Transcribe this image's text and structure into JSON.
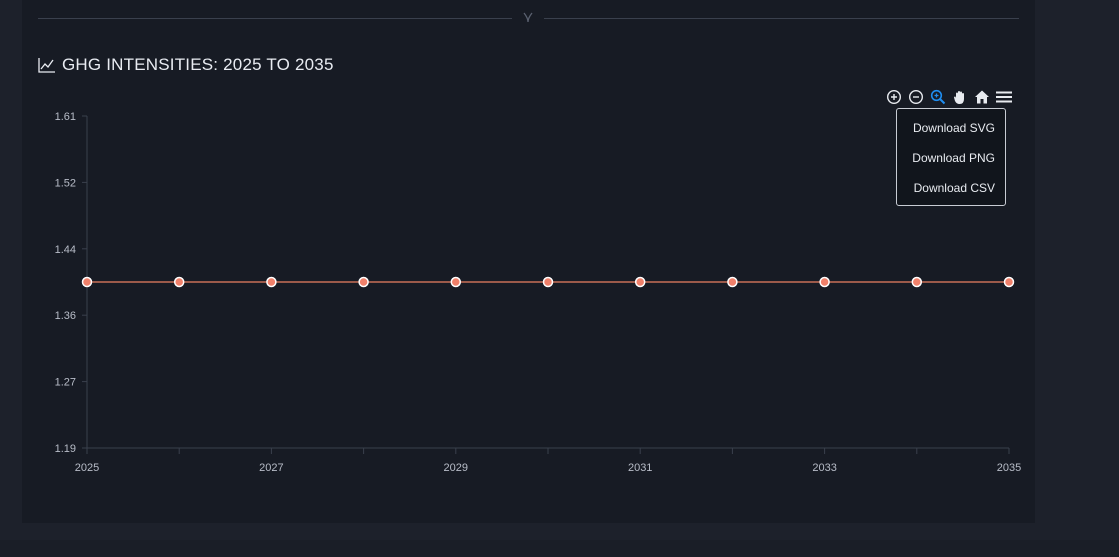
{
  "header": {
    "divider_icon": "chevron-up-icon"
  },
  "chart_title": "GHG INTENSITIES: 2025 TO 2035",
  "toolbar": {
    "zoom_in_icon": "zoom-in-icon",
    "zoom_out_icon": "zoom-out-icon",
    "selection_zoom_icon": "magnifier-zoom-icon",
    "pan_icon": "hand-pan-icon",
    "reset_icon": "home-icon",
    "menu_icon": "hamburger-menu-icon"
  },
  "export_menu": {
    "svg_label": "Download SVG",
    "png_label": "Download PNG",
    "csv_label": "Download CSV"
  },
  "colors": {
    "line": "#c86f56",
    "marker_fill": "#f0806a",
    "marker_stroke": "#ffffff",
    "active_tool": "#1f8ef1"
  },
  "chart_data": {
    "type": "line",
    "title": "GHG INTENSITIES: 2025 TO 2035",
    "x": [
      2025,
      2026,
      2027,
      2028,
      2029,
      2030,
      2031,
      2032,
      2033,
      2034,
      2035
    ],
    "x_tick_labels": [
      "2025",
      "2027",
      "2029",
      "2031",
      "2033",
      "2035"
    ],
    "y_tick_labels": [
      "1.61",
      "1.52",
      "1.44",
      "1.36",
      "1.27",
      "1.19"
    ],
    "series": [
      {
        "values": [
          1.4,
          1.4,
          1.4,
          1.4,
          1.4,
          1.4,
          1.4,
          1.4,
          1.4,
          1.4,
          1.4
        ]
      }
    ],
    "ylim": [
      1.19,
      1.61
    ],
    "xlim": [
      2025,
      2035
    ],
    "grid": false,
    "legend": "none"
  }
}
